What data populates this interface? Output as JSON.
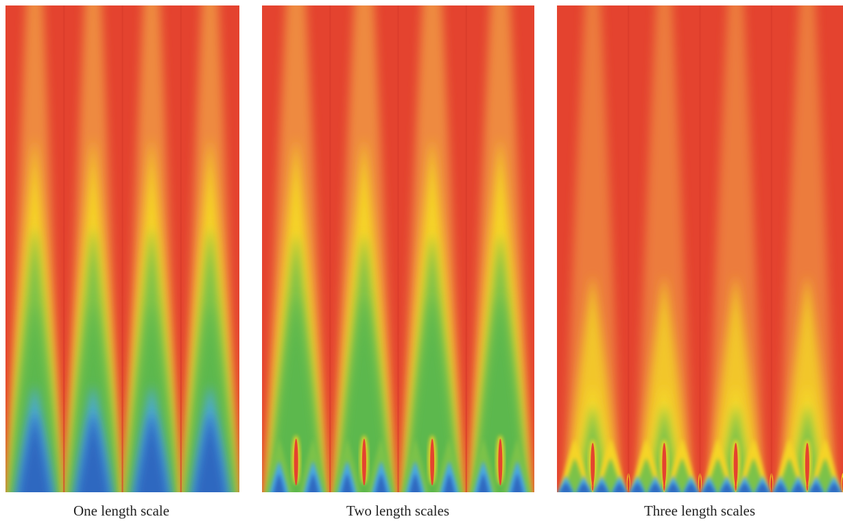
{
  "panels": [
    {
      "caption": "One length scale"
    },
    {
      "caption": "Two length scales"
    },
    {
      "caption": "Three length scales"
    }
  ]
}
